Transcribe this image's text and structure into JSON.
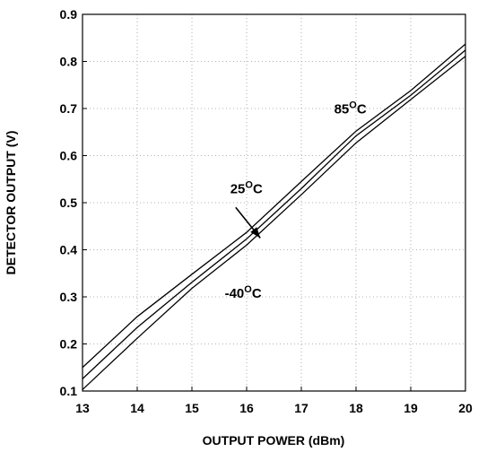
{
  "chart_data": {
    "type": "line",
    "title": "",
    "xlabel": "OUTPUT POWER (dBm)",
    "ylabel": "DETECTOR OUTPUT (V)",
    "xlim": [
      13,
      20
    ],
    "ylim": [
      0.1,
      0.9
    ],
    "grid": true,
    "x_ticks": [
      "13",
      "14",
      "15",
      "16",
      "17",
      "18",
      "19",
      "20"
    ],
    "y_ticks": [
      "0.1",
      "0.2",
      "0.3",
      "0.4",
      "0.5",
      "0.6",
      "0.7",
      "0.8",
      "0.9"
    ],
    "x": [
      13,
      14,
      15,
      16,
      17,
      18,
      19,
      20
    ],
    "series": [
      {
        "values": [
          0.15,
          0.258,
          0.348,
          0.437,
          0.545,
          0.652,
          0.738,
          0.837
        ]
      },
      {
        "values": [
          0.126,
          0.235,
          0.331,
          0.423,
          0.53,
          0.642,
          0.728,
          0.824
        ]
      },
      {
        "values": [
          0.103,
          0.212,
          0.318,
          0.41,
          0.517,
          0.627,
          0.719,
          0.811
        ]
      }
    ],
    "annotations": [
      {
        "base": "85",
        "sup": "O",
        "unit": "C",
        "x": 17.6,
        "y": 0.69
      },
      {
        "base": "25",
        "sup": "O",
        "unit": "C",
        "x": 15.7,
        "y": 0.52
      },
      {
        "base": "-40",
        "sup": "O",
        "unit": "C",
        "x": 15.6,
        "y": 0.298
      }
    ],
    "arrow": {
      "from": [
        15.8,
        0.49
      ],
      "to": [
        16.25,
        0.425
      ]
    }
  }
}
